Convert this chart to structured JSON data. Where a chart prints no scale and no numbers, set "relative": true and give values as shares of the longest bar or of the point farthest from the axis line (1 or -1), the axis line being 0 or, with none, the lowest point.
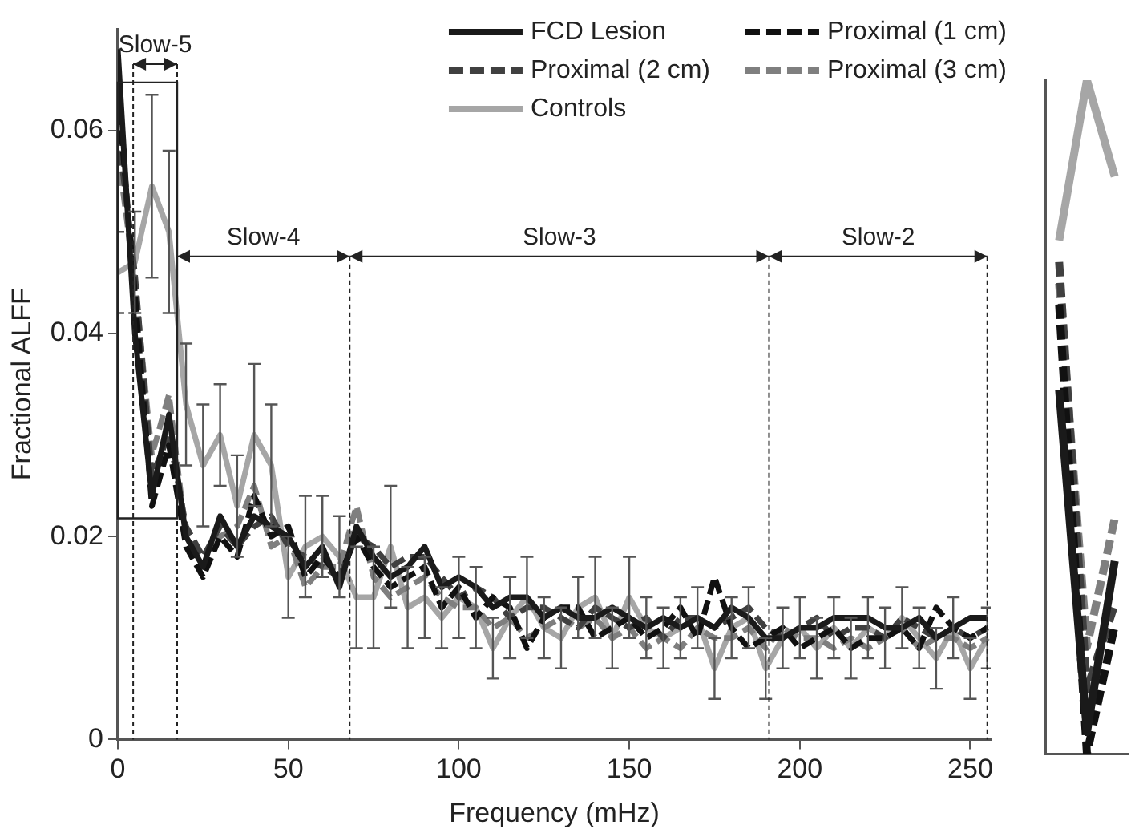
{
  "chart_data": [
    {
      "type": "line",
      "xlabel": "Frequency (mHz)",
      "ylabel": "Fractional ALFF",
      "x": [
        0,
        5,
        10,
        15,
        20,
        25,
        30,
        35,
        40,
        45,
        50,
        55,
        60,
        65,
        70,
        75,
        80,
        85,
        90,
        95,
        100,
        105,
        110,
        115,
        120,
        125,
        130,
        135,
        140,
        145,
        150,
        155,
        160,
        165,
        170,
        175,
        180,
        185,
        190,
        195,
        200,
        205,
        210,
        215,
        220,
        225,
        230,
        235,
        240,
        245,
        250,
        255
      ],
      "xlim": [
        0,
        256
      ],
      "xticks": [
        0,
        50,
        100,
        150,
        200,
        250
      ],
      "ylim": [
        0,
        0.07
      ],
      "yticks": [
        0,
        0.02,
        0.04,
        0.06
      ],
      "grid": false,
      "legend": "top right",
      "marker": "none",
      "ref_lines": [
        {
          "axis": "x",
          "value": 4.5,
          "line_style": "dashed"
        },
        {
          "axis": "x",
          "value": 17.4,
          "line_style": "dashed"
        },
        {
          "axis": "x",
          "value": 68,
          "line_style": "dashed"
        },
        {
          "axis": "x",
          "value": 191,
          "line_style": "dashed"
        },
        {
          "axis": "x",
          "value": 255,
          "line_style": "dashed"
        }
      ],
      "annotations": [
        "Slow-5",
        "Slow-4",
        "Slow-3",
        "Slow-2"
      ],
      "series": [
        {
          "name": "FCD Lesion",
          "color": "#1a1a1a",
          "line_style": "solid",
          "values": [
            0.068,
            0.04,
            0.024,
            0.032,
            0.02,
            0.017,
            0.022,
            0.019,
            0.022,
            0.021,
            0.02,
            0.017,
            0.019,
            0.015,
            0.021,
            0.018,
            0.016,
            0.017,
            0.019,
            0.015,
            0.016,
            0.015,
            0.013,
            0.014,
            0.014,
            0.012,
            0.013,
            0.012,
            0.012,
            0.013,
            0.012,
            0.011,
            0.012,
            0.011,
            0.012,
            0.011,
            0.013,
            0.012,
            0.01,
            0.01,
            0.011,
            0.011,
            0.012,
            0.012,
            0.012,
            0.011,
            0.011,
            0.012,
            0.01,
            0.011,
            0.012,
            0.012
          ]
        },
        {
          "name": "Proximal (1 cm)",
          "color": "#111111",
          "line_style": "dashed",
          "values": [
            0.064,
            0.044,
            0.023,
            0.029,
            0.019,
            0.016,
            0.02,
            0.018,
            0.024,
            0.02,
            0.021,
            0.016,
            0.018,
            0.016,
            0.02,
            0.017,
            0.015,
            0.016,
            0.017,
            0.013,
            0.015,
            0.012,
            0.014,
            0.013,
            0.009,
            0.012,
            0.013,
            0.013,
            0.01,
            0.011,
            0.012,
            0.01,
            0.011,
            0.013,
            0.01,
            0.016,
            0.011,
            0.009,
            0.01,
            0.011,
            0.009,
            0.01,
            0.011,
            0.009,
            0.01,
            0.01,
            0.011,
            0.009,
            0.013,
            0.011,
            0.01,
            0.011
          ]
        },
        {
          "name": "Proximal (2 cm)",
          "color": "#404040",
          "line_style": "dashed",
          "values": [
            0.06,
            0.046,
            0.026,
            0.03,
            0.021,
            0.018,
            0.021,
            0.019,
            0.021,
            0.022,
            0.019,
            0.018,
            0.017,
            0.016,
            0.02,
            0.019,
            0.017,
            0.018,
            0.018,
            0.016,
            0.014,
            0.015,
            0.014,
            0.012,
            0.013,
            0.013,
            0.012,
            0.011,
            0.013,
            0.012,
            0.011,
            0.012,
            0.01,
            0.012,
            0.012,
            0.011,
            0.012,
            0.013,
            0.011,
            0.01,
            0.011,
            0.012,
            0.01,
            0.011,
            0.011,
            0.01,
            0.012,
            0.011,
            0.01,
            0.011,
            0.01,
            0.011
          ]
        },
        {
          "name": "Proximal (3 cm)",
          "color": "#7f7f7f",
          "line_style": "dashed",
          "values": [
            0.058,
            0.045,
            0.028,
            0.034,
            0.02,
            0.018,
            0.02,
            0.021,
            0.025,
            0.019,
            0.02,
            0.015,
            0.017,
            0.017,
            0.023,
            0.016,
            0.014,
            0.015,
            0.016,
            0.014,
            0.013,
            0.013,
            0.011,
            0.012,
            0.01,
            0.011,
            0.012,
            0.011,
            0.012,
            0.01,
            0.011,
            0.009,
            0.01,
            0.009,
            0.011,
            0.01,
            0.01,
            0.011,
            0.009,
            0.011,
            0.01,
            0.01,
            0.009,
            0.01,
            0.009,
            0.01,
            0.011,
            0.009,
            0.01,
            0.01,
            0.009,
            0.01
          ]
        },
        {
          "name": "Controls",
          "color": "#a6a6a6",
          "line_style": "solid",
          "values": [
            0.046,
            0.047,
            0.0545,
            0.05,
            0.033,
            0.027,
            0.03,
            0.023,
            0.03,
            0.027,
            0.016,
            0.019,
            0.02,
            0.018,
            0.014,
            0.014,
            0.019,
            0.013,
            0.014,
            0.012,
            0.014,
            0.013,
            0.009,
            0.012,
            0.014,
            0.011,
            0.01,
            0.013,
            0.014,
            0.01,
            0.014,
            0.011,
            0.01,
            0.011,
            0.012,
            0.007,
            0.011,
            0.012,
            0.007,
            0.01,
            0.011,
            0.009,
            0.011,
            0.009,
            0.011,
            0.01,
            0.012,
            0.01,
            0.008,
            0.011,
            0.007,
            0.01
          ],
          "errors": [
            0.004,
            0.005,
            0.009,
            0.008,
            0.006,
            0.006,
            0.005,
            0.005,
            0.007,
            0.006,
            0.004,
            0.005,
            0.004,
            0.004,
            0.005,
            0.005,
            0.006,
            0.004,
            0.004,
            0.003,
            0.004,
            0.004,
            0.003,
            0.004,
            0.004,
            0.003,
            0.003,
            0.003,
            0.004,
            0.003,
            0.004,
            0.003,
            0.003,
            0.003,
            0.003,
            0.003,
            0.003,
            0.003,
            0.003,
            0.003,
            0.003,
            0.003,
            0.003,
            0.003,
            0.003,
            0.003,
            0.003,
            0.003,
            0.003,
            0.003,
            0.003,
            0.003
          ]
        }
      ]
    },
    {
      "type": "line",
      "categories": [
        null,
        null,
        null
      ],
      "relative": true,
      "series": [
        {
          "color": "#1a1a1a",
          "line_style": "solid",
          "values": [
            0.54,
            0.032,
            0.286
          ]
        },
        {
          "color": "#111111",
          "line_style": "dashed",
          "values": [
            0.667,
            0,
            0.19
          ]
        },
        {
          "color": "#404040",
          "line_style": "dashed",
          "values": [
            0.73,
            0.095,
            0.222
          ]
        },
        {
          "color": "#7f7f7f",
          "line_style": "dashed",
          "values": [
            0.698,
            0.159,
            0.349
          ]
        },
        {
          "color": "#a6a6a6",
          "line_style": "solid",
          "values": [
            0.762,
            1,
            0.857
          ]
        }
      ]
    }
  ]
}
